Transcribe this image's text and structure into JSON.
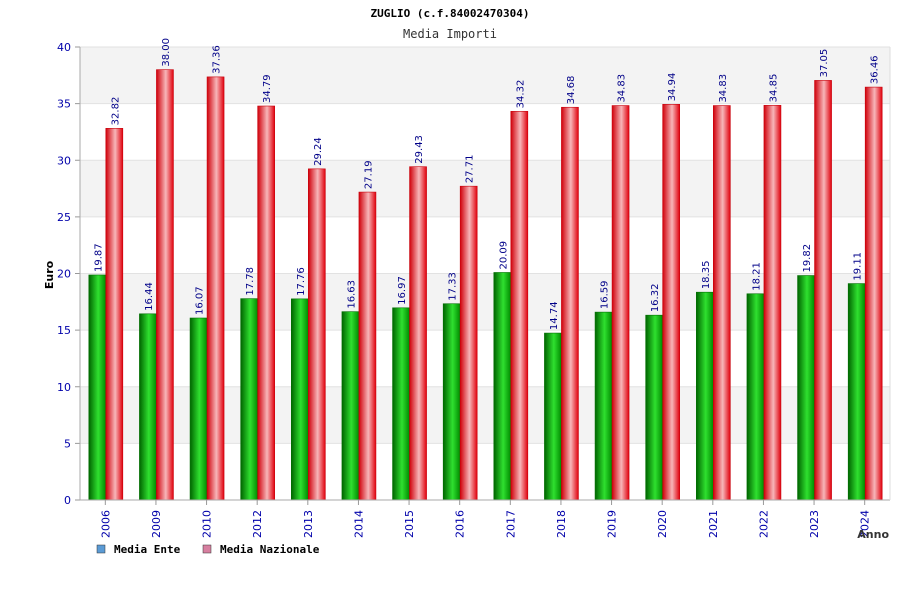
{
  "chart_data": {
    "type": "bar",
    "title": "ZUGLIO (c.f.84002470304)",
    "subtitle": "Media Importi",
    "xlabel": "Anno",
    "ylabel": "Euro",
    "ylim": [
      0,
      40
    ],
    "yticks": [
      0,
      5,
      10,
      15,
      20,
      25,
      30,
      35,
      40
    ],
    "grid": true,
    "legend_position": "bottom-left",
    "categories": [
      "2006",
      "2009",
      "2010",
      "2012",
      "2013",
      "2014",
      "2015",
      "2016",
      "2017",
      "2018",
      "2019",
      "2020",
      "2021",
      "2022",
      "2023",
      "2024"
    ],
    "series": [
      {
        "name": "Media Ente",
        "color": "#00a000",
        "legend_color": "#5b9bd5",
        "values": [
          19.87,
          16.44,
          16.07,
          17.78,
          17.76,
          16.63,
          16.97,
          17.33,
          20.09,
          14.74,
          16.59,
          16.32,
          18.35,
          18.21,
          19.82,
          19.11
        ],
        "labels": [
          "19.87",
          "16.44",
          "16.07",
          "17.78",
          "17.76",
          "16.63",
          "16.97",
          "17.33",
          "20.09",
          "14.74",
          "16.59",
          "16.32",
          "18.35",
          "18.21",
          "19.82",
          "19.11"
        ]
      },
      {
        "name": "Media Nazionale",
        "color": "#e8000f",
        "legend_color": "#d77fa0",
        "values": [
          32.82,
          38.0,
          37.36,
          34.79,
          29.24,
          27.19,
          29.43,
          27.71,
          34.32,
          34.68,
          34.83,
          34.94,
          34.83,
          34.85,
          37.05,
          36.46
        ],
        "labels": [
          "32.82",
          "38.00",
          "37.36",
          "34.79",
          "29.24",
          "27.19",
          "29.43",
          "27.71",
          "34.32",
          "34.68",
          "34.83",
          "34.94",
          "34.83",
          "34.85",
          "37.05",
          "36.46"
        ]
      }
    ]
  }
}
